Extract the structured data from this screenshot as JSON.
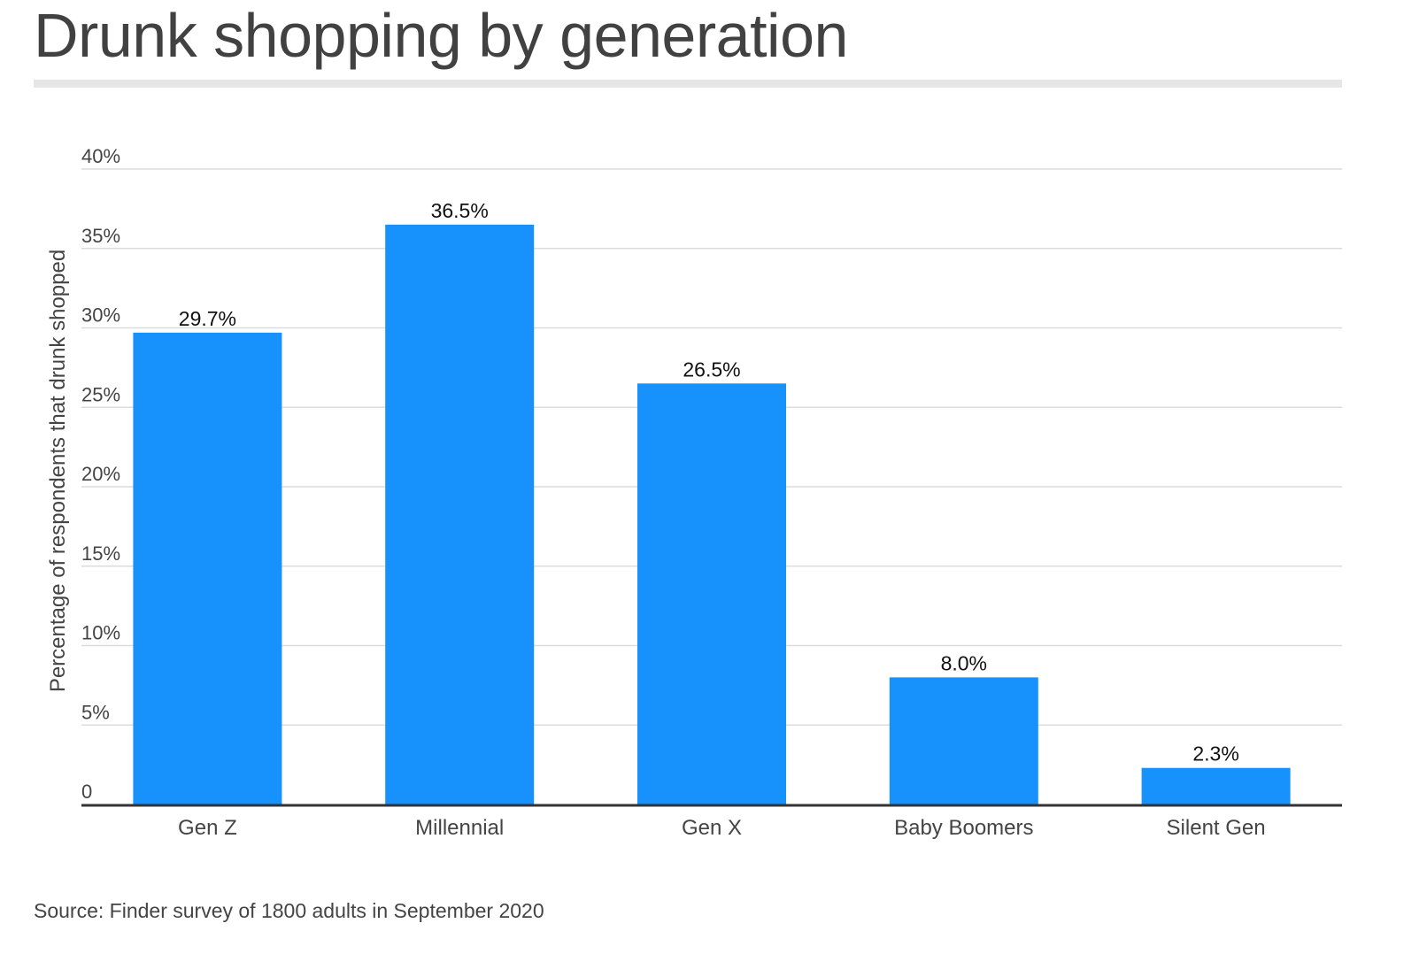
{
  "title": "Drunk shopping by generation",
  "source": "Source: Finder survey of 1800 adults in September 2020",
  "colors": {
    "bar": "#1791fc",
    "title": "#414141",
    "axis": "#333333",
    "grid": "#dcdcdc",
    "tick_text": "#444444",
    "label_text": "#111111"
  },
  "chart_data": {
    "type": "bar",
    "categories": [
      "Gen Z",
      "Millennial",
      "Gen X",
      "Baby Boomers",
      "Silent Gen"
    ],
    "values": [
      29.7,
      36.5,
      26.5,
      8.0,
      2.3
    ],
    "value_labels": [
      "29.7%",
      "36.5%",
      "26.5%",
      "8.0%",
      "2.3%"
    ],
    "xlabel": "",
    "ylabel": "Percentage of respondents that drunk shopped",
    "ylim": [
      0,
      40
    ],
    "yticks": [
      0,
      5,
      10,
      15,
      20,
      25,
      30,
      35,
      40
    ],
    "ytick_labels": [
      "0",
      "5%",
      "10%",
      "15%",
      "20%",
      "25%",
      "30%",
      "35%",
      "40%"
    ],
    "grid": true,
    "legend": "none"
  }
}
